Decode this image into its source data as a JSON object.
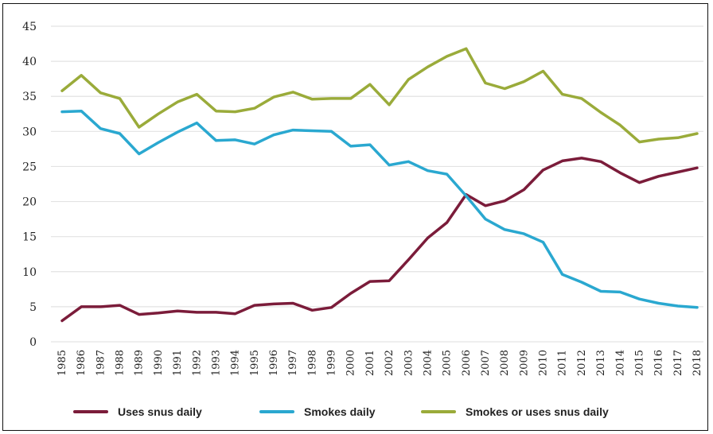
{
  "chart_data": {
    "type": "line",
    "x": [
      "1985",
      "1986",
      "1987",
      "1988",
      "1989",
      "1990",
      "1991",
      "1992",
      "1993",
      "1994",
      "1995",
      "1996",
      "1997",
      "1998",
      "1999",
      "2000",
      "2001",
      "2002",
      "2003",
      "2004",
      "2005",
      "2006",
      "2007",
      "2008",
      "2009",
      "2010",
      "2011",
      "2012",
      "2013",
      "2014",
      "2015",
      "2016",
      "2017",
      "2018"
    ],
    "ylim": [
      0,
      45
    ],
    "yticks": [
      0,
      5,
      10,
      15,
      20,
      25,
      30,
      35,
      40,
      45
    ],
    "grid": true,
    "legend_position": "bottom",
    "series": [
      {
        "name": "Uses snus daily",
        "color": "#7b1c3a",
        "values": [
          3,
          5,
          5,
          5.2,
          3.9,
          4.1,
          4.4,
          4.2,
          4.2,
          4,
          5.2,
          5.4,
          5.5,
          4.5,
          4.9,
          6.9,
          8.6,
          8.7,
          11.7,
          14.8,
          17,
          21,
          19.4,
          20.1,
          21.7,
          24.5,
          25.8,
          26.2,
          25.7,
          24.1,
          22.7,
          23.6,
          24.2,
          24.8
        ]
      },
      {
        "name": "Smokes daily",
        "color": "#2aa8d0",
        "values": [
          32.8,
          32.9,
          30.4,
          29.7,
          26.8,
          28.4,
          29.9,
          31.2,
          28.7,
          28.8,
          28.2,
          29.5,
          30.2,
          30.1,
          30,
          27.9,
          28.1,
          25.2,
          25.7,
          24.4,
          23.9,
          20.8,
          17.5,
          16,
          15.4,
          14.2,
          9.6,
          8.5,
          7.2,
          7.1,
          6.1,
          5.5,
          5.1,
          4.9
        ]
      },
      {
        "name": "Smokes or uses snus daily",
        "color": "#9aab3a",
        "values": [
          35.8,
          38,
          35.5,
          34.7,
          30.6,
          32.5,
          34.2,
          35.3,
          32.9,
          32.8,
          33.3,
          34.9,
          35.6,
          34.6,
          34.7,
          34.7,
          36.7,
          33.8,
          37.4,
          39.2,
          40.7,
          41.8,
          36.9,
          36.1,
          37.1,
          38.6,
          35.3,
          34.7,
          32.7,
          30.9,
          28.5,
          28.9,
          29.1,
          29.7
        ]
      }
    ]
  }
}
